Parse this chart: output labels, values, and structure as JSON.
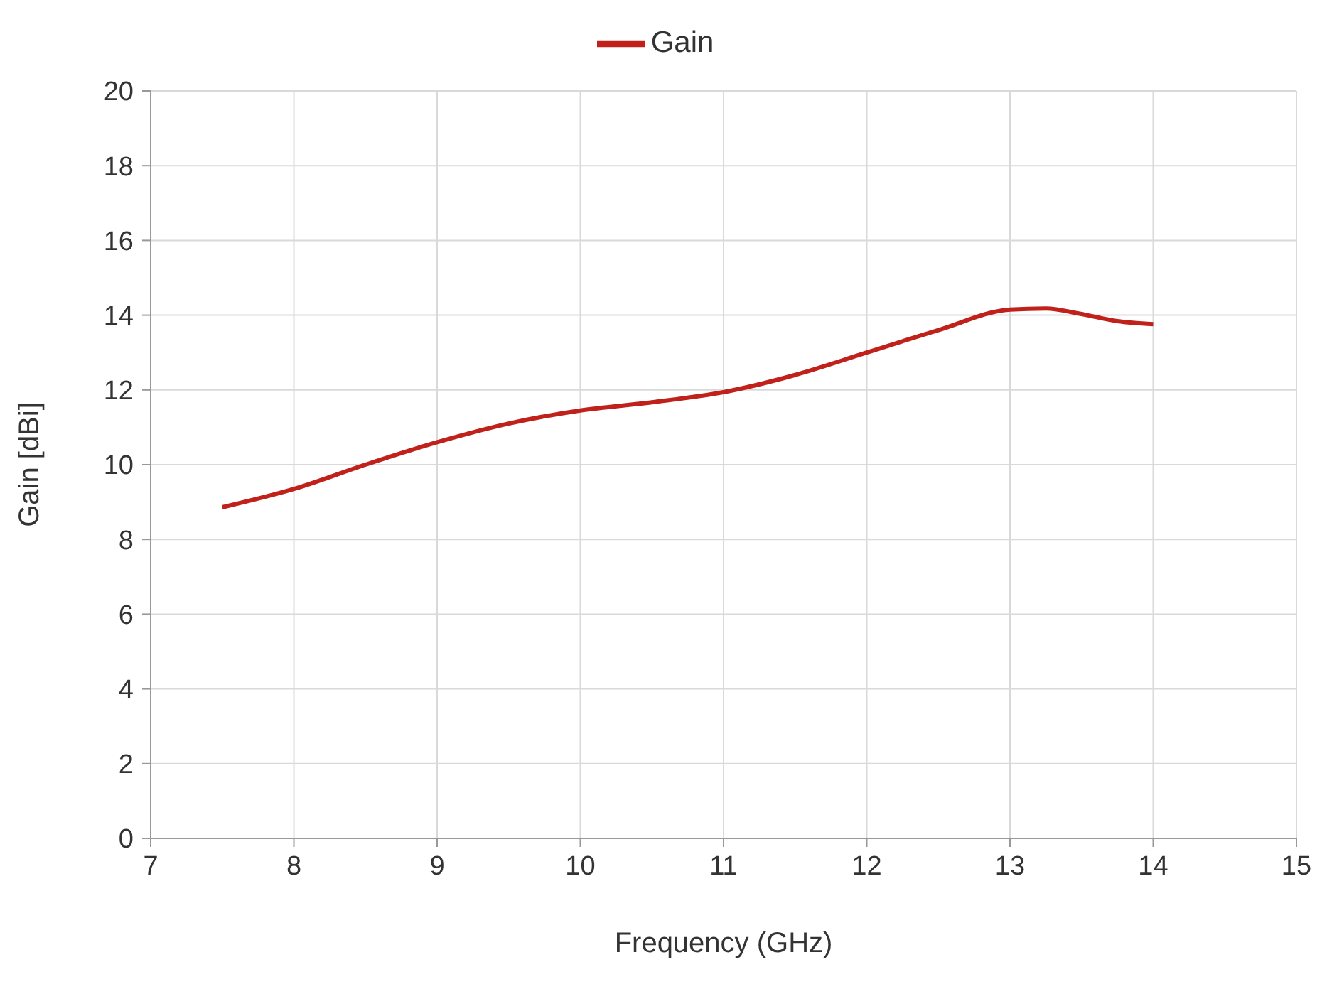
{
  "chart_data": {
    "type": "line",
    "xlabel": "Frequency (GHz)",
    "ylabel": "Gain [dBi]",
    "x": [
      7.5,
      8,
      8.5,
      9,
      9.5,
      10,
      10.5,
      11,
      11.5,
      12,
      12.5,
      13,
      13.25,
      13.5,
      13.75,
      14
    ],
    "series": [
      {
        "name": "Gain",
        "color": "#c0211a",
        "values": [
          8.86,
          9.35,
          10.0,
          10.6,
          11.1,
          11.45,
          11.67,
          11.94,
          12.4,
          13.0,
          13.6,
          14.15,
          14.18,
          14.03,
          13.84,
          13.76
        ]
      }
    ],
    "xlim": [
      7,
      15
    ],
    "xticks": [
      7,
      8,
      9,
      10,
      11,
      12,
      13,
      14,
      15
    ],
    "ylim": [
      0,
      20
    ],
    "yticks": [
      0,
      2,
      4,
      6,
      8,
      10,
      12,
      14,
      16,
      18,
      20
    ],
    "grid": true,
    "legend": "top",
    "marker": "none",
    "line_style": "solid"
  }
}
